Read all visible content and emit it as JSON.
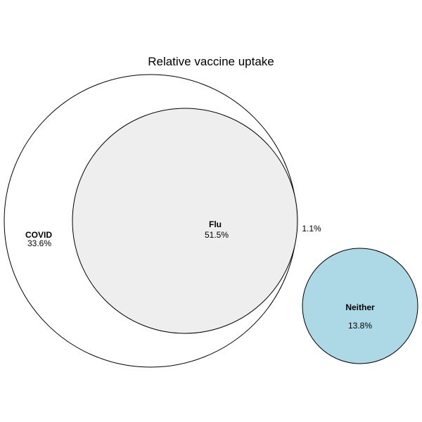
{
  "title": "Relative vaccine uptake",
  "colors": {
    "covid_fill": "#ffffff",
    "flu_fill": "#ebebeb",
    "flu_only_sliver": "#d9d9d9",
    "neither_fill": "#add8e6",
    "stroke": "#000000"
  },
  "sets": {
    "covid": {
      "name": "COVID",
      "percent": "33.6%"
    },
    "flu": {
      "name": "Flu",
      "percent": "51.5%"
    },
    "flu_only": {
      "percent": "1.1%"
    },
    "neither": {
      "name": "Neither",
      "percent": "13.8%"
    }
  }
}
